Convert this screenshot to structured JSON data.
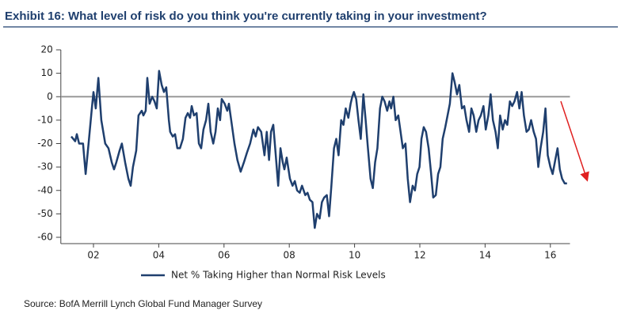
{
  "chart_data": {
    "type": "line",
    "title": "Exhibit 16: What level of risk do you think you're currently taking in your investment?",
    "source": "Source: BofA Merrill Lynch Global Fund Manager Survey",
    "xlim": [
      2001,
      2016.6
    ],
    "xticks": [
      {
        "value": 2002,
        "label": "02"
      },
      {
        "value": 2004,
        "label": "04"
      },
      {
        "value": 2006,
        "label": "06"
      },
      {
        "value": 2008,
        "label": "08"
      },
      {
        "value": 2010,
        "label": "10"
      },
      {
        "value": 2012,
        "label": "12"
      },
      {
        "value": 2014,
        "label": "14"
      },
      {
        "value": 2016,
        "label": "16"
      }
    ],
    "ylim": [
      -60,
      20
    ],
    "yticks": [
      20,
      10,
      0,
      -10,
      -20,
      -30,
      -40,
      -50,
      -60
    ],
    "x": [
      2001.32,
      2001.44,
      2001.49,
      2001.56,
      2001.68,
      2001.76,
      2001.85,
      2001.95,
      2002.0,
      2002.07,
      2002.15,
      2002.24,
      2002.36,
      2002.46,
      2002.56,
      2002.63,
      2002.7,
      2002.8,
      2002.87,
      2002.97,
      2003.07,
      2003.14,
      2003.21,
      2003.31,
      2003.38,
      2003.48,
      2003.53,
      2003.6,
      2003.65,
      2003.72,
      2003.8,
      2003.87,
      2003.94,
      2004.01,
      2004.09,
      2004.16,
      2004.23,
      2004.31,
      2004.35,
      2004.43,
      2004.5,
      2004.57,
      2004.65,
      2004.74,
      2004.82,
      2004.89,
      2004.96,
      2005.01,
      2005.08,
      2005.16,
      2005.23,
      2005.3,
      2005.37,
      2005.45,
      2005.52,
      2005.59,
      2005.67,
      2005.74,
      2005.81,
      2005.88,
      2005.93,
      2006.02,
      2006.1,
      2006.15,
      2006.22,
      2006.32,
      2006.41,
      2006.51,
      2006.61,
      2006.7,
      2006.8,
      2006.9,
      2006.97,
      2007.04,
      2007.14,
      2007.24,
      2007.31,
      2007.38,
      2007.44,
      2007.51,
      2007.58,
      2007.66,
      2007.73,
      2007.8,
      2007.85,
      2007.92,
      2008.02,
      2008.1,
      2008.17,
      2008.24,
      2008.32,
      2008.39,
      2008.49,
      2008.56,
      2008.63,
      2008.71,
      2008.78,
      2008.85,
      2008.93,
      2009.0,
      2009.07,
      2009.15,
      2009.22,
      2009.29,
      2009.37,
      2009.44,
      2009.51,
      2009.59,
      2009.66,
      2009.73,
      2009.81,
      2009.88,
      2009.93,
      2009.98,
      2010.05,
      2010.12,
      2010.19,
      2010.27,
      2010.34,
      2010.41,
      2010.49,
      2010.56,
      2010.63,
      2010.7,
      2010.78,
      2010.85,
      2010.92,
      2011.0,
      2011.07,
      2011.12,
      2011.19,
      2011.26,
      2011.34,
      2011.41,
      2011.48,
      2011.56,
      2011.63,
      2011.7,
      2011.78,
      2011.85,
      2011.92,
      2011.99,
      2012.05,
      2012.12,
      2012.19,
      2012.27,
      2012.34,
      2012.41,
      2012.49,
      2012.56,
      2012.63,
      2012.7,
      2012.78,
      2012.85,
      2012.92,
      2013.0,
      2013.07,
      2013.14,
      2013.21,
      2013.29,
      2013.36,
      2013.43,
      2013.51,
      2013.58,
      2013.65,
      2013.73,
      2013.8,
      2013.87,
      2013.95,
      2014.02,
      2014.1,
      2014.17,
      2014.24,
      2014.32,
      2014.39,
      2014.46,
      2014.54,
      2014.61,
      2014.68,
      2014.76,
      2014.83,
      2014.9,
      2014.98,
      2015.05,
      2015.12,
      2015.19,
      2015.27,
      2015.34,
      2015.41,
      2015.49,
      2015.56,
      2015.63,
      2015.7,
      2015.78,
      2015.85,
      2015.92,
      2016.0,
      2016.07,
      2016.15,
      2016.22,
      2016.29,
      2016.36,
      2016.44,
      2016.51
    ],
    "series": [
      {
        "name": "Net % Taking Higher than Normal Risk Levels",
        "color": "#1f3f6e",
        "values": [
          -17,
          -19,
          -16,
          -20,
          -20,
          -33,
          -20,
          -5,
          2,
          -5,
          8,
          -10,
          -20,
          -22,
          -28,
          -31,
          -28,
          -23,
          -20,
          -28,
          -35,
          -38,
          -30,
          -23,
          -8,
          -6,
          -8,
          -6,
          8,
          -3,
          0,
          -2,
          -5,
          11,
          5,
          2,
          4,
          -10,
          -15,
          -17,
          -16,
          -22,
          -22,
          -18,
          -9,
          -7,
          -9,
          -4,
          -8,
          -7,
          -20,
          -22,
          -14,
          -10,
          -3,
          -15,
          -20,
          -15,
          -5,
          -10,
          -1,
          -3,
          -6,
          -3,
          -10,
          -20,
          -27,
          -32,
          -28,
          -24,
          -20,
          -14,
          -17,
          -13,
          -15,
          -25,
          -15,
          -27,
          -15,
          -12,
          -24,
          -38,
          -22,
          -28,
          -31,
          -26,
          -35,
          -38,
          -36,
          -40,
          -41,
          -38,
          -42,
          -41,
          -44,
          -45,
          -56,
          -50,
          -52,
          -45,
          -43,
          -42,
          -51,
          -38,
          -22,
          -18,
          -25,
          -10,
          -12,
          -5,
          -9,
          -3,
          0,
          2,
          -1,
          -10,
          -18,
          1,
          -10,
          -22,
          -35,
          -39,
          -28,
          -22,
          -5,
          0,
          -2,
          -6,
          -2,
          -5,
          0,
          -10,
          -8,
          -15,
          -22,
          -20,
          -35,
          -45,
          -38,
          -40,
          -33,
          -30,
          -18,
          -13,
          -15,
          -22,
          -32,
          -43,
          -42,
          -33,
          -30,
          -18,
          -13,
          -8,
          -3,
          10,
          6,
          1,
          5,
          -5,
          -4,
          -10,
          -15,
          -5,
          -8,
          -15,
          -10,
          -8,
          -4,
          -14,
          -8,
          1,
          -10,
          -15,
          -22,
          -8,
          -14,
          -10,
          -12,
          -2,
          -4,
          -2,
          2,
          -5,
          2,
          -8,
          -15,
          -14,
          -10,
          -15,
          -18,
          -30,
          -22,
          -15,
          -5,
          -25,
          -30,
          -33,
          -27,
          -22,
          -31,
          -35,
          -37,
          -37
        ]
      }
    ],
    "zero_line_color": "#999999"
  }
}
